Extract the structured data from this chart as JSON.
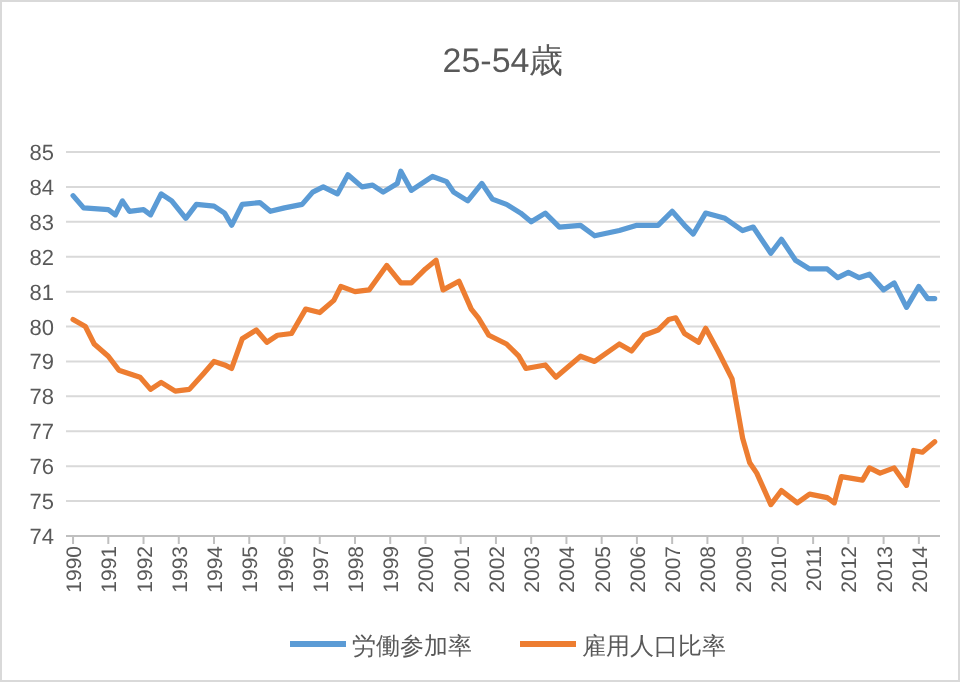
{
  "chart_data": {
    "type": "line",
    "title": "25-54歳",
    "xlim": [
      1989.8,
      2014.6
    ],
    "xticks": [
      1990,
      1991,
      1992,
      1993,
      1994,
      1995,
      1996,
      1997,
      1998,
      1999,
      2000,
      2001,
      2002,
      2003,
      2004,
      2005,
      2006,
      2007,
      2008,
      2009,
      2010,
      2011,
      2012,
      2013,
      2014
    ],
    "ylim": [
      74,
      85
    ],
    "yticks": [
      74,
      75,
      76,
      77,
      78,
      79,
      80,
      81,
      82,
      83,
      84,
      85
    ],
    "grid": "y",
    "legend": "bottom",
    "line_style": "solid",
    "marker": "none",
    "series": [
      {
        "name": "労働参加率",
        "color": "#5b9bd5",
        "x": [
          1990.0,
          1990.3,
          1991.0,
          1991.2,
          1991.4,
          1991.6,
          1992.0,
          1992.2,
          1992.5,
          1992.8,
          1993.2,
          1993.5,
          1994.0,
          1994.3,
          1994.5,
          1994.8,
          1995.3,
          1995.6,
          1996.0,
          1996.5,
          1996.8,
          1997.1,
          1997.5,
          1997.8,
          1998.2,
          1998.5,
          1998.8,
          1999.2,
          1999.3,
          1999.6,
          1999.9,
          2000.2,
          2000.6,
          2000.8,
          2001.2,
          2001.6,
          2001.9,
          2002.3,
          2002.7,
          2003.0,
          2003.4,
          2003.8,
          2004.4,
          2004.8,
          2005.5,
          2006.0,
          2006.6,
          2007.0,
          2007.35,
          2007.6,
          2007.95,
          2008.5,
          2009.0,
          2009.3,
          2009.8,
          2010.1,
          2010.5,
          2010.9,
          2011.4,
          2011.7,
          2012.0,
          2012.3,
          2012.6,
          2013.0,
          2013.3,
          2013.65,
          2014.0,
          2014.25,
          2014.45
        ],
        "values": [
          83.75,
          83.4,
          83.35,
          83.2,
          83.6,
          83.3,
          83.35,
          83.2,
          83.8,
          83.6,
          83.1,
          83.5,
          83.45,
          83.25,
          82.9,
          83.5,
          83.55,
          83.3,
          83.4,
          83.5,
          83.85,
          84.0,
          83.8,
          84.35,
          84.0,
          84.05,
          83.85,
          84.1,
          84.45,
          83.9,
          84.1,
          84.3,
          84.15,
          83.85,
          83.6,
          84.1,
          83.65,
          83.5,
          83.25,
          83.0,
          83.25,
          82.85,
          82.9,
          82.6,
          82.75,
          82.9,
          82.9,
          83.3,
          82.9,
          82.65,
          83.25,
          83.1,
          82.75,
          82.85,
          82.1,
          82.5,
          81.9,
          81.65,
          81.65,
          81.4,
          81.55,
          81.4,
          81.5,
          81.05,
          81.25,
          80.55,
          81.15,
          80.8,
          80.8
        ]
      },
      {
        "name": "雇用人口比率",
        "color": "#ed7d31",
        "x": [
          1990.0,
          1990.35,
          1990.6,
          1991.0,
          1991.3,
          1991.6,
          1991.9,
          1992.2,
          1992.5,
          1992.9,
          1993.3,
          1993.7,
          1994.0,
          1994.3,
          1994.5,
          1994.8,
          1995.2,
          1995.5,
          1995.8,
          1996.2,
          1996.6,
          1997.0,
          1997.4,
          1997.6,
          1998.0,
          1998.4,
          1998.9,
          1999.3,
          1999.6,
          2000.0,
          2000.3,
          2000.5,
          2000.95,
          2001.3,
          2001.5,
          2001.8,
          2002.3,
          2002.65,
          2002.85,
          2003.4,
          2003.7,
          2004.4,
          2004.8,
          2005.5,
          2005.85,
          2006.2,
          2006.6,
          2006.9,
          2007.1,
          2007.35,
          2007.75,
          2007.95,
          2008.3,
          2008.7,
          2009.0,
          2009.2,
          2009.4,
          2009.8,
          2010.1,
          2010.55,
          2010.9,
          2011.4,
          2011.6,
          2011.8,
          2012.4,
          2012.6,
          2012.9,
          2013.3,
          2013.65,
          2013.85,
          2014.1,
          2014.45
        ],
        "values": [
          80.2,
          80.0,
          79.5,
          79.15,
          78.75,
          78.65,
          78.55,
          78.2,
          78.4,
          78.15,
          78.2,
          78.65,
          79.0,
          78.9,
          78.8,
          79.65,
          79.9,
          79.55,
          79.75,
          79.8,
          80.5,
          80.4,
          80.75,
          81.15,
          81.0,
          81.05,
          81.75,
          81.25,
          81.25,
          81.65,
          81.9,
          81.05,
          81.3,
          80.5,
          80.25,
          79.75,
          79.5,
          79.15,
          78.8,
          78.9,
          78.55,
          79.15,
          79.0,
          79.5,
          79.3,
          79.75,
          79.9,
          80.2,
          80.25,
          79.8,
          79.55,
          79.95,
          79.3,
          78.5,
          76.8,
          76.1,
          75.8,
          74.9,
          75.3,
          74.95,
          75.2,
          75.1,
          74.95,
          75.7,
          75.6,
          75.95,
          75.8,
          75.95,
          75.45,
          76.45,
          76.4,
          76.7
        ]
      }
    ]
  }
}
